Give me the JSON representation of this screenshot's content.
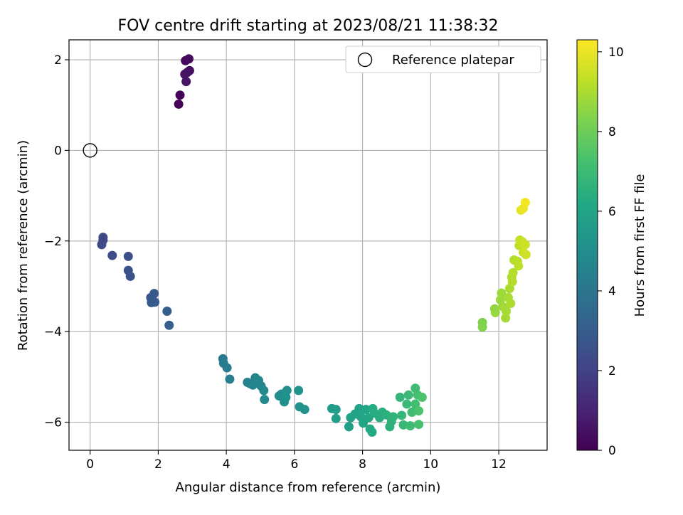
{
  "chart_data": {
    "type": "scatter",
    "title": "FOV centre drift starting at 2023/08/21 11:38:32",
    "xlabel": "Angular distance from reference (arcmin)",
    "ylabel": "Rotation from reference (arcmin)",
    "xlim": [
      -0.62,
      13.42
    ],
    "ylim": [
      -6.62,
      2.44
    ],
    "xticks": [
      0,
      2,
      4,
      6,
      8,
      10,
      12
    ],
    "yticks": [
      -6,
      -4,
      -2,
      0,
      2
    ],
    "grid": true,
    "legend": {
      "position": "top-right",
      "entries": [
        "Reference platepar"
      ]
    },
    "reference_point": {
      "x": 0,
      "y": 0,
      "marker": "open-circle",
      "color": "#000000"
    },
    "colorbar": {
      "label": "Hours from first FF file",
      "colormap": "viridis",
      "range": [
        0,
        10.3
      ],
      "ticks": [
        0,
        2,
        4,
        6,
        8,
        10
      ]
    },
    "series": [
      {
        "points": [
          {
            "x": 2.6,
            "y": 1.02,
            "h": 0.05
          },
          {
            "x": 2.64,
            "y": 1.22,
            "h": 0.12
          },
          {
            "x": 2.8,
            "y": 1.98,
            "h": 0.2
          },
          {
            "x": 2.9,
            "y": 2.02,
            "h": 0.28
          },
          {
            "x": 2.85,
            "y": 1.72,
            "h": 0.35
          },
          {
            "x": 2.92,
            "y": 1.76,
            "h": 0.42
          },
          {
            "x": 2.78,
            "y": 1.68,
            "h": 0.5
          },
          {
            "x": 2.82,
            "y": 1.52,
            "h": 0.58
          },
          {
            "x": 0.38,
            "y": -1.92,
            "h": 2.2
          },
          {
            "x": 0.38,
            "y": -1.98,
            "h": 2.25
          },
          {
            "x": 0.34,
            "y": -2.08,
            "h": 2.3
          },
          {
            "x": 0.65,
            "y": -2.32,
            "h": 2.35
          },
          {
            "x": 1.12,
            "y": -2.34,
            "h": 2.45
          },
          {
            "x": 1.12,
            "y": -2.65,
            "h": 2.55
          },
          {
            "x": 1.18,
            "y": -2.78,
            "h": 2.6
          },
          {
            "x": 1.78,
            "y": -3.25,
            "h": 2.8
          },
          {
            "x": 1.88,
            "y": -3.16,
            "h": 2.85
          },
          {
            "x": 1.8,
            "y": -3.36,
            "h": 2.9
          },
          {
            "x": 1.9,
            "y": -3.35,
            "h": 2.95
          },
          {
            "x": 2.26,
            "y": -3.55,
            "h": 3.05
          },
          {
            "x": 2.32,
            "y": -3.86,
            "h": 3.1
          },
          {
            "x": 3.9,
            "y": -4.6,
            "h": 4.2
          },
          {
            "x": 3.92,
            "y": -4.7,
            "h": 4.25
          },
          {
            "x": 4.02,
            "y": -4.8,
            "h": 4.3
          },
          {
            "x": 4.1,
            "y": -5.05,
            "h": 4.35
          },
          {
            "x": 4.62,
            "y": -5.12,
            "h": 4.5
          },
          {
            "x": 4.7,
            "y": -5.15,
            "h": 4.55
          },
          {
            "x": 4.78,
            "y": -5.18,
            "h": 4.6
          },
          {
            "x": 4.85,
            "y": -5.02,
            "h": 4.65
          },
          {
            "x": 4.95,
            "y": -5.08,
            "h": 4.7
          },
          {
            "x": 5.02,
            "y": -5.2,
            "h": 4.75
          },
          {
            "x": 5.1,
            "y": -5.3,
            "h": 4.8
          },
          {
            "x": 5.12,
            "y": -5.5,
            "h": 4.85
          },
          {
            "x": 5.55,
            "y": -5.42,
            "h": 4.95
          },
          {
            "x": 5.62,
            "y": -5.38,
            "h": 5.0
          },
          {
            "x": 5.7,
            "y": -5.55,
            "h": 5.05
          },
          {
            "x": 5.78,
            "y": -5.3,
            "h": 5.1
          },
          {
            "x": 5.75,
            "y": -5.45,
            "h": 5.15
          },
          {
            "x": 6.12,
            "y": -5.3,
            "h": 5.2
          },
          {
            "x": 6.15,
            "y": -5.66,
            "h": 5.25
          },
          {
            "x": 6.3,
            "y": -5.72,
            "h": 5.3
          },
          {
            "x": 7.1,
            "y": -5.7,
            "h": 5.6
          },
          {
            "x": 7.22,
            "y": -5.72,
            "h": 5.65
          },
          {
            "x": 7.22,
            "y": -5.92,
            "h": 5.7
          },
          {
            "x": 7.6,
            "y": -6.1,
            "h": 5.8
          },
          {
            "x": 7.65,
            "y": -5.9,
            "h": 5.85
          },
          {
            "x": 7.78,
            "y": -5.82,
            "h": 5.9
          },
          {
            "x": 7.9,
            "y": -5.7,
            "h": 5.95
          },
          {
            "x": 7.95,
            "y": -5.88,
            "h": 6.0
          },
          {
            "x": 8.02,
            "y": -6.02,
            "h": 6.05
          },
          {
            "x": 8.1,
            "y": -5.72,
            "h": 6.1
          },
          {
            "x": 8.18,
            "y": -5.9,
            "h": 6.15
          },
          {
            "x": 8.22,
            "y": -6.15,
            "h": 6.2
          },
          {
            "x": 8.28,
            "y": -6.22,
            "h": 6.25
          },
          {
            "x": 8.3,
            "y": -5.7,
            "h": 6.3
          },
          {
            "x": 8.35,
            "y": -5.8,
            "h": 6.35
          },
          {
            "x": 8.5,
            "y": -5.9,
            "h": 6.4
          },
          {
            "x": 8.58,
            "y": -5.78,
            "h": 6.45
          },
          {
            "x": 8.7,
            "y": -5.84,
            "h": 6.5
          },
          {
            "x": 8.8,
            "y": -6.1,
            "h": 6.55
          },
          {
            "x": 8.85,
            "y": -5.98,
            "h": 6.6
          },
          {
            "x": 8.9,
            "y": -5.88,
            "h": 6.65
          },
          {
            "x": 9.1,
            "y": -5.45,
            "h": 6.75
          },
          {
            "x": 9.15,
            "y": -5.85,
            "h": 6.8
          },
          {
            "x": 9.2,
            "y": -6.06,
            "h": 6.85
          },
          {
            "x": 9.3,
            "y": -5.6,
            "h": 6.9
          },
          {
            "x": 9.35,
            "y": -5.4,
            "h": 6.95
          },
          {
            "x": 9.4,
            "y": -6.08,
            "h": 7.0
          },
          {
            "x": 9.45,
            "y": -5.78,
            "h": 7.05
          },
          {
            "x": 9.55,
            "y": -5.25,
            "h": 7.1
          },
          {
            "x": 9.55,
            "y": -5.6,
            "h": 7.15
          },
          {
            "x": 9.62,
            "y": -5.4,
            "h": 7.2
          },
          {
            "x": 9.65,
            "y": -6.05,
            "h": 7.25
          },
          {
            "x": 9.65,
            "y": -5.75,
            "h": 7.3
          },
          {
            "x": 9.75,
            "y": -5.45,
            "h": 7.35
          },
          {
            "x": 11.52,
            "y": -3.8,
            "h": 8.3
          },
          {
            "x": 11.52,
            "y": -3.9,
            "h": 8.35
          },
          {
            "x": 11.88,
            "y": -3.5,
            "h": 8.6
          },
          {
            "x": 11.9,
            "y": -3.58,
            "h": 8.65
          },
          {
            "x": 12.05,
            "y": -3.3,
            "h": 8.75
          },
          {
            "x": 12.08,
            "y": -3.15,
            "h": 8.8
          },
          {
            "x": 12.12,
            "y": -3.45,
            "h": 8.85
          },
          {
            "x": 12.2,
            "y": -3.7,
            "h": 8.9
          },
          {
            "x": 12.22,
            "y": -3.55,
            "h": 8.92
          },
          {
            "x": 12.28,
            "y": -3.25,
            "h": 8.95
          },
          {
            "x": 12.32,
            "y": -3.05,
            "h": 9.0
          },
          {
            "x": 12.35,
            "y": -3.38,
            "h": 9.02
          },
          {
            "x": 12.38,
            "y": -2.8,
            "h": 9.05
          },
          {
            "x": 12.4,
            "y": -2.9,
            "h": 9.1
          },
          {
            "x": 12.42,
            "y": -2.7,
            "h": 9.12
          },
          {
            "x": 12.45,
            "y": -2.42,
            "h": 9.15
          },
          {
            "x": 12.55,
            "y": -2.45,
            "h": 9.2
          },
          {
            "x": 12.58,
            "y": -2.55,
            "h": 9.25
          },
          {
            "x": 12.6,
            "y": -2.1,
            "h": 9.3
          },
          {
            "x": 12.62,
            "y": -1.98,
            "h": 9.35
          },
          {
            "x": 12.7,
            "y": -2.02,
            "h": 9.4
          },
          {
            "x": 12.72,
            "y": -2.25,
            "h": 9.45
          },
          {
            "x": 12.78,
            "y": -2.08,
            "h": 9.5
          },
          {
            "x": 12.8,
            "y": -2.3,
            "h": 9.55
          },
          {
            "x": 12.65,
            "y": -1.32,
            "h": 9.9
          },
          {
            "x": 12.72,
            "y": -1.28,
            "h": 10.0
          },
          {
            "x": 12.78,
            "y": -1.15,
            "h": 10.15
          }
        ]
      }
    ]
  }
}
